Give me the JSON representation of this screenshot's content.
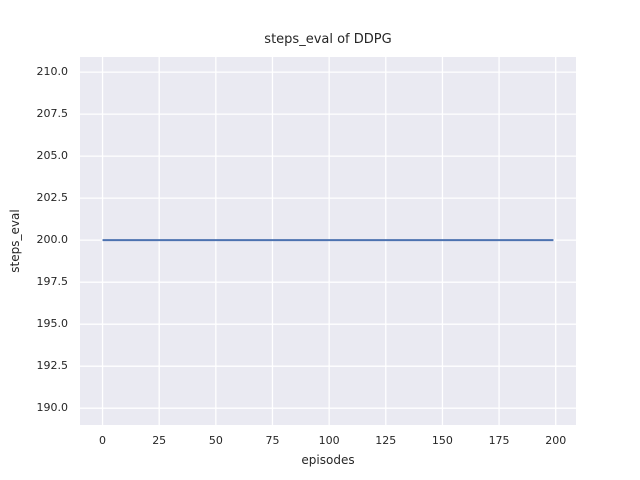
{
  "chart_data": {
    "type": "line",
    "title": "steps_eval of DDPG",
    "xlabel": "episodes",
    "ylabel": "steps_eval",
    "x_ticks": [
      0,
      25,
      50,
      75,
      100,
      125,
      150,
      175,
      200
    ],
    "x_tick_labels": [
      "0",
      "25",
      "50",
      "75",
      "100",
      "125",
      "150",
      "175",
      "200"
    ],
    "y_ticks": [
      190.0,
      192.5,
      195.0,
      197.5,
      200.0,
      202.5,
      205.0,
      207.5,
      210.0
    ],
    "y_tick_labels": [
      "190.0",
      "192.5",
      "195.0",
      "197.5",
      "200.0",
      "202.5",
      "205.0",
      "207.5",
      "210.0"
    ],
    "xlim": [
      -9.95,
      208.95
    ],
    "ylim": [
      189.0,
      210.9
    ],
    "grid": true,
    "legend": "none",
    "plot_bg_color": "#eaeaf2",
    "grid_color": "#ffffff",
    "figure_bg_color": "#ffffff",
    "series": [
      {
        "name": "steps_eval",
        "x": [
          0,
          199
        ],
        "y": [
          200.0,
          200.0
        ],
        "color": "#4c72b0",
        "linewidth": 2
      }
    ]
  }
}
